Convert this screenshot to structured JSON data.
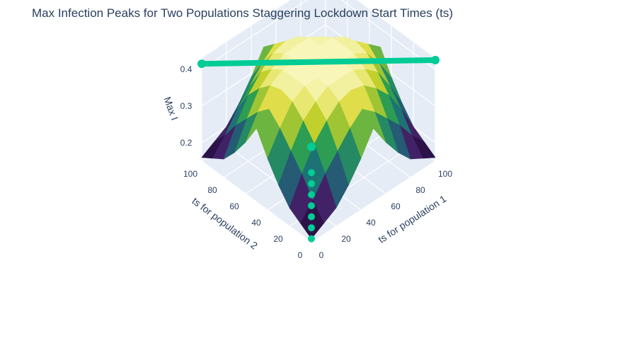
{
  "chart_data": {
    "type": "surface3d",
    "title": "Max Infection Peaks for Two Populations Staggering Lockdown Start Times (ts)",
    "x_axis": {
      "label": "ts for population 1",
      "range": [
        0,
        100
      ],
      "ticks": [
        "0",
        "20",
        "40",
        "60",
        "80",
        "100"
      ]
    },
    "y_axis": {
      "label": "ts for population 2",
      "range": [
        0,
        100
      ],
      "ticks": [
        "0",
        "20",
        "40",
        "60",
        "80",
        "100"
      ]
    },
    "z_axis": {
      "label": "Max I",
      "range": [
        0.15,
        0.43
      ],
      "ticks": [
        "0.2",
        "0.3",
        "0.4"
      ]
    },
    "colorscale": "sequential (dark purple → teal → green → yellow → cream)",
    "series": [
      {
        "kind": "surface",
        "x": [
          0,
          10,
          20,
          30,
          40,
          50,
          60,
          70,
          80,
          90,
          100
        ],
        "y": [
          0,
          10,
          20,
          30,
          40,
          50,
          60,
          70,
          80,
          90,
          100
        ],
        "z": [
          [
            0.16,
            0.18,
            0.2,
            0.24,
            0.29,
            0.35,
            0.29,
            0.24,
            0.2,
            0.18,
            0.16
          ],
          [
            0.18,
            0.22,
            0.27,
            0.31,
            0.35,
            0.38,
            0.35,
            0.31,
            0.27,
            0.22,
            0.18
          ],
          [
            0.2,
            0.27,
            0.33,
            0.37,
            0.4,
            0.41,
            0.4,
            0.37,
            0.33,
            0.27,
            0.2
          ],
          [
            0.24,
            0.31,
            0.37,
            0.4,
            0.42,
            0.42,
            0.42,
            0.4,
            0.37,
            0.31,
            0.24
          ],
          [
            0.29,
            0.35,
            0.4,
            0.42,
            0.42,
            0.42,
            0.42,
            0.42,
            0.4,
            0.35,
            0.29
          ],
          [
            0.35,
            0.38,
            0.41,
            0.42,
            0.42,
            0.42,
            0.42,
            0.42,
            0.41,
            0.38,
            0.35
          ],
          [
            0.29,
            0.35,
            0.4,
            0.42,
            0.42,
            0.42,
            0.42,
            0.42,
            0.4,
            0.35,
            0.29
          ],
          [
            0.24,
            0.31,
            0.37,
            0.4,
            0.42,
            0.42,
            0.42,
            0.4,
            0.37,
            0.31,
            0.24
          ],
          [
            0.2,
            0.27,
            0.33,
            0.37,
            0.4,
            0.41,
            0.4,
            0.37,
            0.33,
            0.27,
            0.2
          ],
          [
            0.18,
            0.22,
            0.27,
            0.31,
            0.35,
            0.38,
            0.35,
            0.31,
            0.27,
            0.22,
            0.18
          ],
          [
            0.16,
            0.18,
            0.2,
            0.24,
            0.29,
            0.35,
            0.29,
            0.24,
            0.2,
            0.18,
            0.16
          ]
        ]
      },
      {
        "kind": "scatter3d",
        "color": "#00cc96",
        "points": [
          {
            "x": 100,
            "y": 0,
            "z": 0.425
          },
          {
            "x": 0,
            "y": 100,
            "z": 0.415
          },
          {
            "x": 0,
            "y": 0,
            "z": 0.41
          },
          {
            "x": 0,
            "y": 0,
            "z": 0.34
          },
          {
            "x": 0,
            "y": 0,
            "z": 0.31
          },
          {
            "x": 0,
            "y": 0,
            "z": 0.28
          },
          {
            "x": 0,
            "y": 0,
            "z": 0.25
          },
          {
            "x": 0,
            "y": 0,
            "z": 0.22
          },
          {
            "x": 0,
            "y": 0,
            "z": 0.19
          },
          {
            "x": 0,
            "y": 0,
            "z": 0.16
          }
        ]
      }
    ]
  }
}
